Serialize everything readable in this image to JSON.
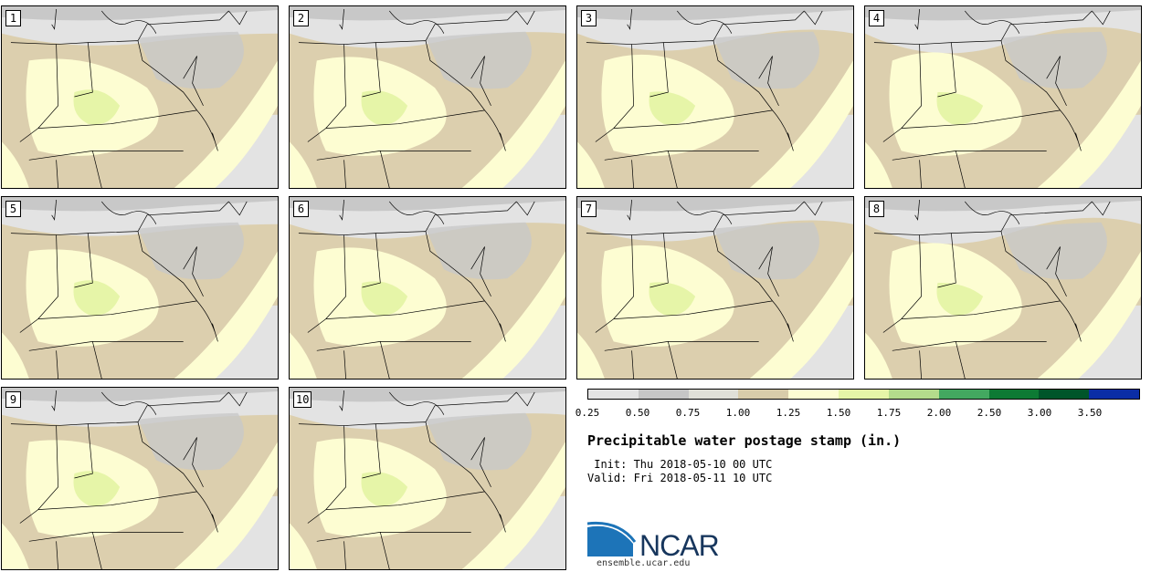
{
  "stamps": [
    {
      "label": "1"
    },
    {
      "label": "2"
    },
    {
      "label": "3"
    },
    {
      "label": "4"
    },
    {
      "label": "5"
    },
    {
      "label": "6"
    },
    {
      "label": "7"
    },
    {
      "label": "8"
    },
    {
      "label": "9"
    },
    {
      "label": "10"
    }
  ],
  "legend": {
    "ticks": [
      "0.25",
      "0.50",
      "0.75",
      "1.00",
      "1.25",
      "1.50",
      "1.75",
      "2.00",
      "2.50",
      "3.00",
      "3.50"
    ],
    "colors": [
      "#e3e3e3",
      "#c6c6c6",
      "#e0e0d8",
      "#d8ccaa",
      "#fdfdd2",
      "#e6f5a8",
      "#b4dc8c",
      "#43a860",
      "#0d7a34",
      "#00552a",
      "#0a2da6"
    ]
  },
  "title": "Precipitable water postage stamp (in.)",
  "init_line": " Init: Thu 2018-05-10 00 UTC",
  "valid_line": "Valid: Fri 2018-05-11 10 UTC",
  "logo_text": "NCAR",
  "site": "ensemble.ucar.edu",
  "palette": {
    "gray_light": "#e3e3e3",
    "gray_mid": "#c8c8c8",
    "tan": "#dccfae",
    "pale_yellow": "#fdfdd2",
    "light_green": "#e6f5a8",
    "green": "#b4dc8c"
  }
}
